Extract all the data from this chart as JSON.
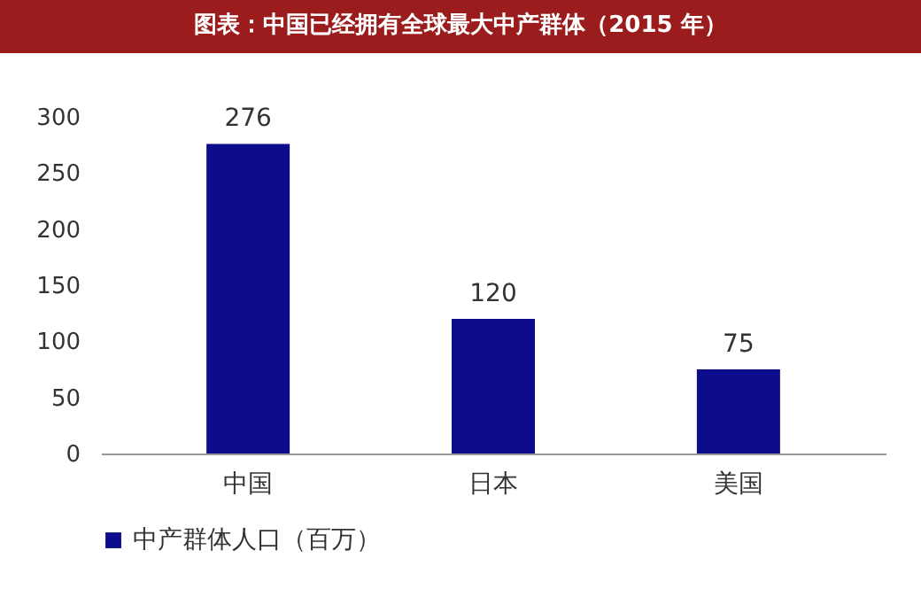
{
  "chart_data": {
    "type": "bar",
    "title": "图表：中国已经拥有全球最大中产群体（2015 年）",
    "categories": [
      "中国",
      "日本",
      "美国"
    ],
    "series": [
      {
        "name": "中产群体人口（百万）",
        "color": "#0d0d8c",
        "values": [
          276,
          120,
          75
        ]
      }
    ],
    "ylim": [
      0,
      300
    ],
    "yticks": [
      0,
      50,
      100,
      150,
      200,
      250,
      300
    ],
    "data_labels": true,
    "legend": "bottom",
    "grid": false
  }
}
